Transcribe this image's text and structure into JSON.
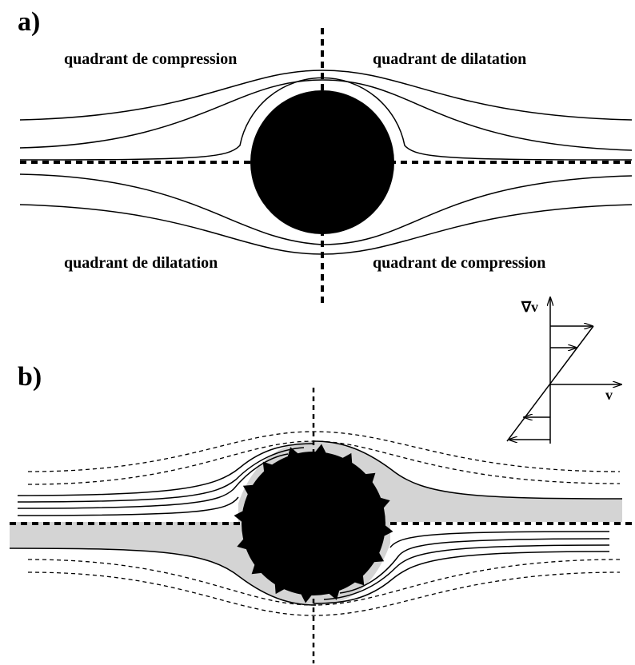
{
  "panel_a": {
    "label": "a)",
    "top_left": "quadrant de compression",
    "top_right": "quadrant de dilatation",
    "bottom_left": "quadrant de dilatation",
    "bottom_right": "quadrant de compression"
  },
  "panel_b": {
    "label": "b)",
    "gradient_label": "∇v",
    "velocity_label": "v"
  }
}
